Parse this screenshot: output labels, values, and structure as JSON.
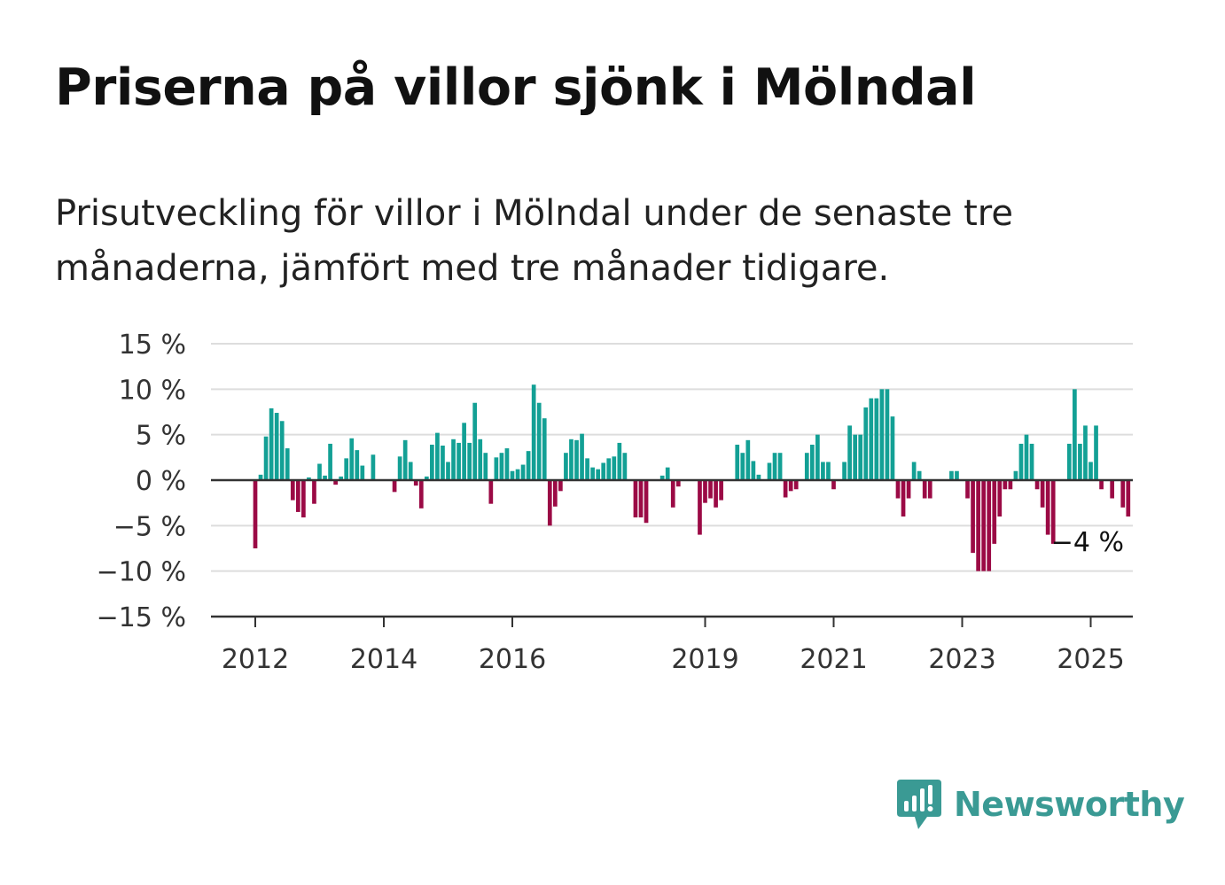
{
  "title": "Priserna på villor sjönk i Mölndal",
  "subtitle": "Prisutveckling för villor i Mölndal under de senaste tre månaderna, jämfört med tre månader tidigare.",
  "brand": {
    "name": "Newsworthy",
    "color": "#3a9a94",
    "icon": "newsworthy-logo-icon"
  },
  "colors": {
    "positive": "#13a095",
    "negative": "#9b0a45",
    "grid": "#dddddd",
    "axis": "#333333"
  },
  "chart_data": {
    "type": "bar",
    "title": "Priserna på villor sjönk i Mölndal",
    "subtitle": "Prisutveckling för villor i Mölndal under de senaste tre månaderna, jämfört med tre månader tidigare.",
    "xlabel": "",
    "ylabel": "",
    "x_unit": "month",
    "start": "2012-01",
    "ylim": [
      -15,
      15
    ],
    "yticks": [
      {
        "value": 15,
        "label": "15 %"
      },
      {
        "value": 10,
        "label": "10 %"
      },
      {
        "value": 5,
        "label": "5 %"
      },
      {
        "value": 0,
        "label": "0 %"
      },
      {
        "value": -5,
        "label": "−5 %"
      },
      {
        "value": -10,
        "label": "−10 %"
      },
      {
        "value": -15,
        "label": "−15 %"
      }
    ],
    "xticks": [
      {
        "date": "2012-01",
        "label": "2012"
      },
      {
        "date": "2014-01",
        "label": "2014"
      },
      {
        "date": "2016-01",
        "label": "2016"
      },
      {
        "date": "2019-01",
        "label": "2019"
      },
      {
        "date": "2021-01",
        "label": "2021"
      },
      {
        "date": "2023-01",
        "label": "2023"
      },
      {
        "date": "2025-01",
        "label": "2025"
      }
    ],
    "grid": true,
    "end_label": "−4 %",
    "values": [
      -7.5,
      0.6,
      4.8,
      7.9,
      7.4,
      6.5,
      3.5,
      -2.2,
      -3.5,
      -4.1,
      0.3,
      -2.6,
      1.8,
      0.5,
      4.0,
      -0.5,
      0.4,
      2.4,
      4.6,
      3.3,
      1.6,
      null,
      2.8,
      null,
      null,
      null,
      -1.3,
      2.6,
      4.4,
      2.0,
      -0.6,
      -3.1,
      0.4,
      3.9,
      5.2,
      3.8,
      2.0,
      4.5,
      4.1,
      6.3,
      4.1,
      8.5,
      4.5,
      3.0,
      -2.6,
      2.5,
      3.0,
      3.5,
      1.0,
      1.2,
      1.7,
      3.2,
      10.5,
      8.5,
      6.8,
      -5.0,
      -2.9,
      -1.2,
      3.0,
      4.5,
      4.4,
      5.1,
      2.4,
      1.4,
      1.2,
      1.9,
      2.4,
      2.6,
      4.1,
      3.0,
      null,
      -4.1,
      -4.1,
      -4.7,
      null,
      null,
      0.5,
      1.4,
      -3.0,
      -0.7,
      null,
      null,
      null,
      -6.0,
      -2.5,
      -2.0,
      -3.0,
      -2.2,
      null,
      null,
      3.9,
      3.0,
      4.4,
      2.1,
      0.6,
      null,
      1.9,
      3.0,
      3.0,
      -1.9,
      -1.2,
      -1.0,
      null,
      3.0,
      3.9,
      5.0,
      2.0,
      2.0,
      -1.0,
      null,
      2.0,
      6.0,
      5.0,
      5.0,
      8.0,
      9.0,
      9.0,
      10.0,
      10.0,
      7.0,
      -2.0,
      -4.0,
      -2.0,
      2.0,
      1.0,
      -2.0,
      -2.0,
      null,
      null,
      null,
      1.0,
      1.0,
      null,
      -2.0,
      -8.0,
      -10.0,
      -10.0,
      -10.0,
      -7.0,
      -4.0,
      -1.0,
      -1.0,
      1.0,
      4.0,
      5.0,
      4.0,
      -1.0,
      -3.0,
      -6.0,
      -7.0,
      null,
      null,
      4.0,
      10.0,
      4.0,
      6.0,
      2.0,
      6.0,
      -1.0,
      null,
      -2.0,
      null,
      -3.0,
      -4.0
    ]
  }
}
